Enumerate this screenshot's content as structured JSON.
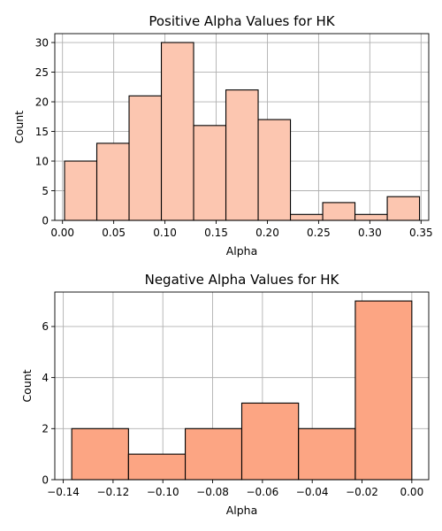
{
  "chart_data": [
    {
      "type": "bar",
      "title": "Positive Alpha Values for HK",
      "xlabel": "Alpha",
      "ylabel": "Count",
      "xlim": [
        -0.0075,
        0.3575
      ],
      "ylim": [
        0,
        31.5
      ],
      "xticks": [
        0.0,
        0.05,
        0.1,
        0.15,
        0.2,
        0.25,
        0.3,
        0.35
      ],
      "xtick_labels": [
        "0.00",
        "0.05",
        "0.10",
        "0.15",
        "0.20",
        "0.25",
        "0.30",
        "0.35"
      ],
      "yticks": [
        0,
        5,
        10,
        15,
        20,
        25,
        30
      ],
      "ytick_labels": [
        "0",
        "5",
        "10",
        "15",
        "20",
        "25",
        "30"
      ],
      "bin_edges": [
        0.002,
        0.0335,
        0.065,
        0.0965,
        0.128,
        0.1595,
        0.191,
        0.2225,
        0.254,
        0.2855,
        0.317,
        0.3485
      ],
      "values": [
        10,
        13,
        21,
        30,
        16,
        22,
        17,
        1,
        3,
        1,
        4
      ],
      "bar_color": "#fcc6b0",
      "grid": true
    },
    {
      "type": "bar",
      "title": "Negative Alpha Values for HK",
      "xlabel": "Alpha",
      "ylabel": "Count",
      "xlim": [
        -0.1434,
        0.0068
      ],
      "ylim": [
        0,
        7.35
      ],
      "xticks": [
        -0.14,
        -0.12,
        -0.1,
        -0.08,
        -0.06,
        -0.04,
        -0.02,
        0.0
      ],
      "xtick_labels": [
        "−0.14",
        "−0.12",
        "−0.10",
        "−0.08",
        "−0.06",
        "−0.04",
        "−0.02",
        "0.00"
      ],
      "yticks": [
        0,
        2,
        4,
        6
      ],
      "ytick_labels": [
        "0",
        "2",
        "4",
        "6"
      ],
      "bin_edges": [
        -0.1366,
        -0.1138,
        -0.091,
        -0.0683,
        -0.0455,
        -0.0227,
        0.0
      ],
      "values": [
        2,
        1,
        2,
        3,
        2,
        7
      ],
      "bar_color": "#fca583",
      "grid": true
    }
  ]
}
